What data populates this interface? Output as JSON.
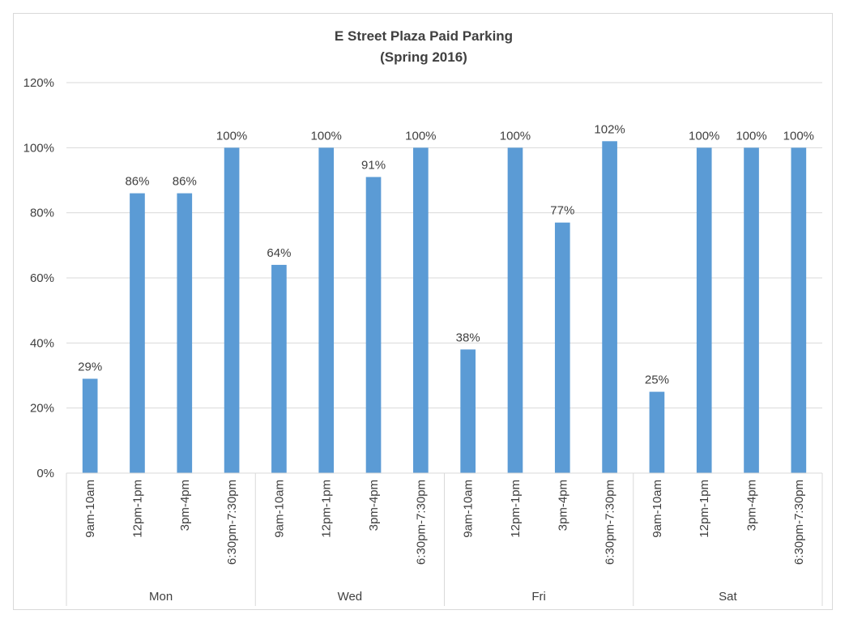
{
  "chart_data": {
    "type": "bar",
    "title": "E Street Plaza Paid Parking",
    "subtitle": "(Spring 2016)",
    "xlabel": "",
    "ylabel": "",
    "ylim": [
      0,
      120
    ],
    "y_tick_step": 20,
    "y_tick_labels": [
      "0%",
      "20%",
      "40%",
      "60%",
      "80%",
      "100%",
      "120%"
    ],
    "grid": true,
    "legend": "none",
    "bar_color": "#5b9bd5",
    "groups": [
      {
        "name": "Mon",
        "categories": [
          "9am-10am",
          "12pm-1pm",
          "3pm-4pm",
          "6:30pm-7:30pm"
        ],
        "values": [
          29,
          86,
          86,
          100
        ],
        "labels": [
          "29%",
          "86%",
          "86%",
          "100%"
        ]
      },
      {
        "name": "Wed",
        "categories": [
          "9am-10am",
          "12pm-1pm",
          "3pm-4pm",
          "6:30pm-7:30pm"
        ],
        "values": [
          64,
          100,
          91,
          100
        ],
        "labels": [
          "64%",
          "100%",
          "91%",
          "100%"
        ]
      },
      {
        "name": "Fri",
        "categories": [
          "9am-10am",
          "12pm-1pm",
          "3pm-4pm",
          "6:30pm-7:30pm"
        ],
        "values": [
          38,
          100,
          77,
          102
        ],
        "labels": [
          "38%",
          "100%",
          "77%",
          "102%"
        ]
      },
      {
        "name": "Sat",
        "categories": [
          "9am-10am",
          "12pm-1pm",
          "3pm-4pm",
          "6:30pm-7:30pm"
        ],
        "values": [
          25,
          100,
          100,
          100
        ],
        "labels": [
          "25%",
          "100%",
          "100%",
          "100%"
        ]
      }
    ]
  }
}
